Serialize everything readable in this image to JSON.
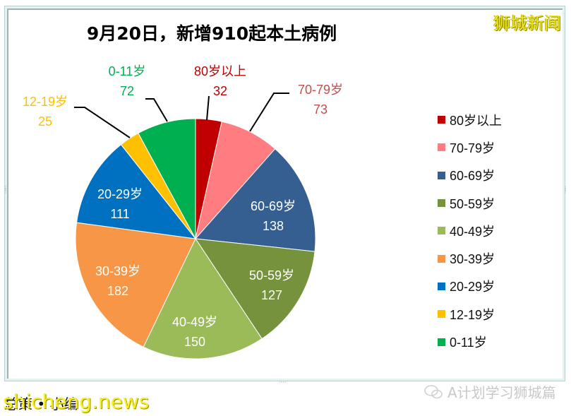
{
  "brand_watermark": "狮城新闻",
  "footer": {
    "left_text": "总策 • 小编",
    "watermark": "shicheng.news",
    "right_text": "A计划学习狮城篇",
    "right_icon": "wechat-icon"
  },
  "chart_data": {
    "type": "pie",
    "title": "9月20日，新增910起本土病例",
    "total": 910,
    "categories": [
      "80岁以上",
      "70-79岁",
      "60-69岁",
      "50-59岁",
      "40-49岁",
      "30-39岁",
      "20-29岁",
      "12-19岁",
      "0-11岁"
    ],
    "values": [
      32,
      73,
      138,
      127,
      150,
      182,
      111,
      25,
      72
    ],
    "colors": [
      "#c00000",
      "#ff7c80",
      "#365f91",
      "#76923c",
      "#9bbb59",
      "#f79646",
      "#0070c0",
      "#ffc000",
      "#00b050"
    ],
    "start_angle": "12 o'clock, clockwise",
    "legend_position": "right",
    "labels": [
      {
        "name": "80岁以上",
        "value": "32",
        "color": "#c00000"
      },
      {
        "name": "70-79岁",
        "value": "73",
        "color": "#c0504d"
      },
      {
        "name": "60-69岁",
        "value": "138",
        "color": "#ffffff"
      },
      {
        "name": "50-59岁",
        "value": "127",
        "color": "#ffffff"
      },
      {
        "name": "40-49岁",
        "value": "150",
        "color": "#ffffff"
      },
      {
        "name": "30-39岁",
        "value": "182",
        "color": "#ffffff"
      },
      {
        "name": "20-29岁",
        "value": "111",
        "color": "#ffffff"
      },
      {
        "name": "12-19岁",
        "value": "25",
        "color": "#ffc000"
      },
      {
        "name": "0-11岁",
        "value": "72",
        "color": "#00b050"
      }
    ]
  }
}
